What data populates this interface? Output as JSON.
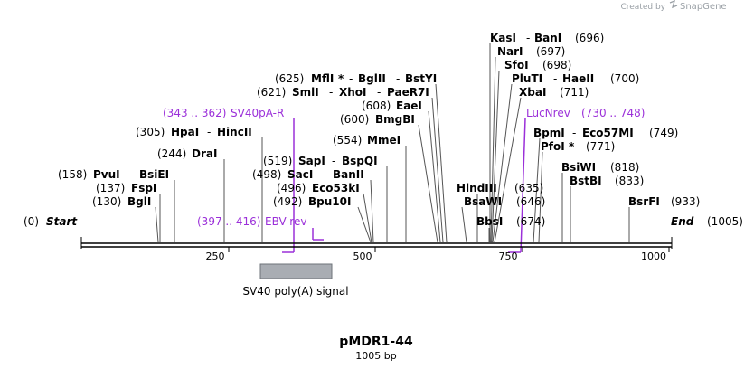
{
  "credit": {
    "created_by": "Created by",
    "brand": "SnapGene"
  },
  "map": {
    "title": "pMDR1-44",
    "size": "1005 bp"
  },
  "axis": {
    "start": "Start",
    "start_pos": "(0)",
    "end": "End",
    "end_pos": "(1005)",
    "ticks": [
      "250",
      "500",
      "750",
      "1000"
    ]
  },
  "sites": {
    "kasI": {
      "name": "KasI",
      "name2": "BanI",
      "pos": "(696)"
    },
    "narI": {
      "name": "NarI",
      "pos": "(697)"
    },
    "sfoI": {
      "name": "SfoI",
      "pos": "(698)"
    },
    "pluTI": {
      "name": "PluTI",
      "name2": "HaeII",
      "pos": "(700)"
    },
    "xbaI": {
      "name": "XbaI",
      "pos": "(711)"
    },
    "mflI": {
      "name": "MflI",
      "star": "*",
      "name2": "BglII",
      "name3": "BstYI",
      "pos": "(625)"
    },
    "smlI": {
      "name": "SmlI",
      "name2": "XhoI",
      "name3": "PaeR7I",
      "pos": "(621)"
    },
    "eaeI": {
      "name": "EaeI",
      "pos": "(608)"
    },
    "bmgBI": {
      "name": "BmgBI",
      "pos": "(600)"
    },
    "mmeI": {
      "name": "MmeI",
      "pos": "(554)"
    },
    "hpaI": {
      "name": "HpaI",
      "name2": "HincII",
      "pos": "(305)"
    },
    "draI": {
      "name": "DraI",
      "pos": "(244)"
    },
    "sapI": {
      "name": "SapI",
      "name2": "BspQI",
      "pos": "(519)"
    },
    "sacI": {
      "name": "SacI",
      "name2": "BanII",
      "pos": "(498)"
    },
    "eco53kI": {
      "name": "Eco53kI",
      "pos": "(496)"
    },
    "bpu10I": {
      "name": "Bpu10I",
      "pos": "(492)"
    },
    "pvuI": {
      "name": "PvuI",
      "name2": "BsiEI",
      "pos": "(158)"
    },
    "fspI": {
      "name": "FspI",
      "pos": "(137)"
    },
    "bglI": {
      "name": "BglI",
      "pos": "(130)"
    },
    "bpmI": {
      "name": "BpmI",
      "name2": "Eco57MI",
      "pos": "(749)"
    },
    "pfoI": {
      "name": "PfoI",
      "star": "*",
      "pos": "(771)"
    },
    "bsiWI": {
      "name": "BsiWI",
      "pos": "(818)"
    },
    "bstBI": {
      "name": "BstBI",
      "pos": "(833)"
    },
    "bsrFI": {
      "name": "BsrFI",
      "pos": "(933)"
    },
    "hindIII": {
      "name": "HindIII",
      "pos": "(635)"
    },
    "bsaWI": {
      "name": "BsaWI",
      "pos": "(646)"
    },
    "bbsI": {
      "name": "BbsI",
      "pos": "(674)"
    }
  },
  "primers": {
    "sv40pa": {
      "name": "SV40pA-R",
      "range": "(343 .. 362)"
    },
    "ebv": {
      "name": "EBV-rev",
      "range": "(397 .. 416)"
    },
    "lucnrev": {
      "name": "LucNrev",
      "range": "(730 .. 748)"
    }
  },
  "feature": {
    "label": "SV40 poly(A) signal"
  },
  "colors": {
    "primer": "#9b30d9",
    "feature_fill": "#a9adb3",
    "backbone": "#000000"
  }
}
